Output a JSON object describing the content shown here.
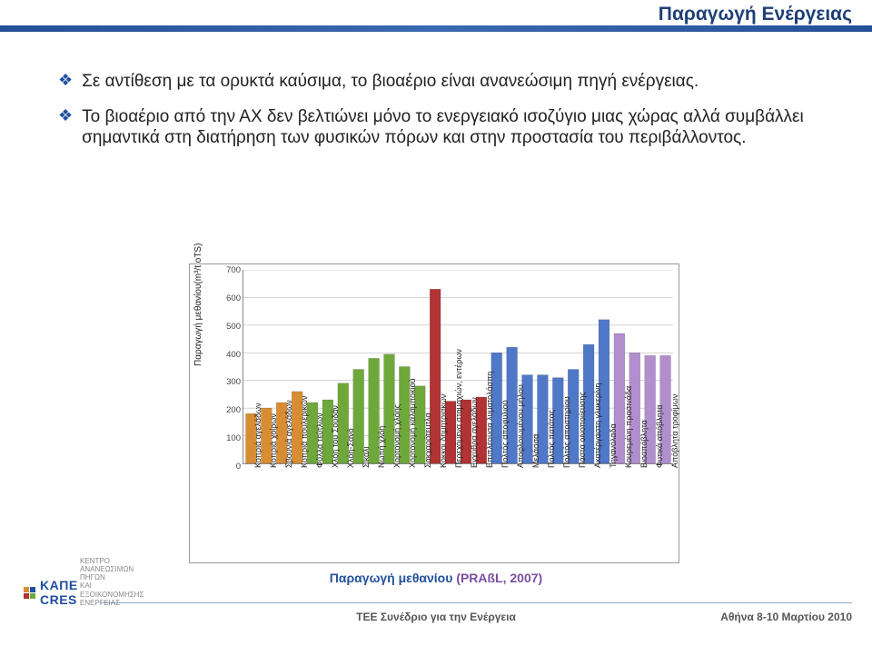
{
  "header": {
    "title": "Παραγωγή Ενέργειας",
    "band_gradient_from": "#245195",
    "band_gradient_to": "#3b69b1"
  },
  "bullets": [
    {
      "mark": "❖",
      "text": "Σε αντίθεση με τα ορυκτά καύσιμα, το βιοαέριο είναι ανανεώσιμη πηγή ενέργειας."
    },
    {
      "mark": "❖",
      "text": "Το βιοαέριο από την ΑΧ δεν βελτιώνει μόνο το ενεργειακό ισοζύγιο μιας χώρας αλλά συμβάλλει σημαντικά στη διατήρηση των φυσικών πόρων και στην προστασία του περιβάλλοντος."
    }
  ],
  "bullet_color": "#1f4fa0",
  "chart": {
    "type": "bar",
    "ylabel": "Παραγωγή μεθανίου(m³/t oTS)",
    "ylim": [
      0,
      700
    ],
    "ytick_step": 100,
    "axis_color": "#888888",
    "grid_color": "#aaaaaa",
    "background": "#ffffff",
    "border": "#9a9a9a",
    "label_fontsize": 9,
    "categories": [
      "Κοπριά αγελάδων",
      "Κοπριά χοίρων",
      "Σβουνιά αγελάδων",
      "Κοπριά πουλερικών",
      "Φύλλα τεύτλων",
      "Χλόη του Σουδάν",
      "Χλόη-Σανό",
      "Σίκαλι",
      "Νωπή χλόη",
      "Χορτονομή χλόης",
      "Χορτονομή καλαμποκιού",
      "Σακχαρότευτλα",
      "Κόκκοι δημητριακών",
      "Περεχόμενα στομαχιών, εντέρων",
      "Εγχύθρα αγελάδων",
      "Επιπλέουσα λυματολάσπη",
      "Πολτός αποφυλιού",
      "Αποφλοιωμένου μήλου",
      "Μελάσσα",
      "Πολτός πατάτας",
      "Πολτός αποστηρίου",
      "Πάστα οινοποιίευσης",
      "Ακατέργαστη γλυκερίνη",
      "Τηγανόλαδα",
      "Κουρεμένη πρασινάδα",
      "Βιοαπόβλητα",
      "Φυτικά απόβλητα",
      "Απόβλητα τροφίμων"
    ],
    "values": [
      180,
      200,
      220,
      260,
      220,
      230,
      290,
      340,
      380,
      395,
      350,
      280,
      630,
      225,
      230,
      240,
      400,
      420,
      320,
      320,
      310,
      340,
      430,
      520,
      470,
      400,
      390,
      390
    ],
    "colors": [
      "#d98d33",
      "#d98d33",
      "#d98d33",
      "#d98d33",
      "#6fa83a",
      "#6fa83a",
      "#6fa83a",
      "#6fa83a",
      "#6fa83a",
      "#6fa83a",
      "#6fa83a",
      "#6fa83a",
      "#b23333",
      "#b23333",
      "#b23333",
      "#b23333",
      "#4f78c9",
      "#4f78c9",
      "#4f78c9",
      "#4f78c9",
      "#4f78c9",
      "#4f78c9",
      "#4f78c9",
      "#4f78c9",
      "#b18fce",
      "#b18fce",
      "#b18fce",
      "#b18fce"
    ]
  },
  "chart_caption": {
    "a": "Παραγωγή μεθανίου ",
    "b": "(PRAßL, 2007)"
  },
  "footer": {
    "org1": "KAΠE",
    "org2": "CRES",
    "org_sub1": "ΚΕΝΤΡΟ ΑΝΑΝΕΩΣΙΜΩΝ ΠΗΓΩΝ",
    "org_sub2": "ΚΑΙ ΕΞΟΙΚΟΝΟΜΗΣΗΣ ΕΝΕΡΓΕΙΑΣ",
    "mid": "ΤΕΕ Συνέδριο για την Ενέργεια",
    "right": "Αθήνα 8-10 Μαρτίου 2010",
    "logo_colors": [
      "#d98d33",
      "#1f4fa0",
      "#b23333",
      "#6fa83a"
    ]
  }
}
